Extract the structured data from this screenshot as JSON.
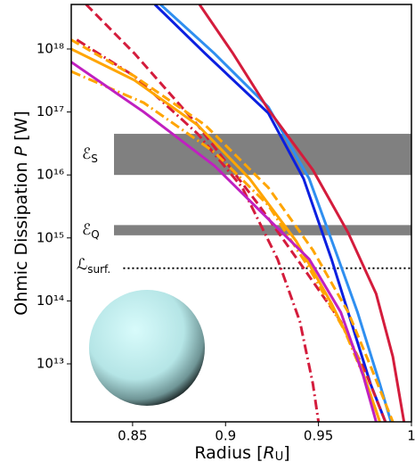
{
  "chart_data": {
    "type": "line",
    "xlabel": [
      "Radius [",
      "R",
      "U",
      "]"
    ],
    "ylabel": [
      "Ohmic Dissipation ",
      "P",
      " [W]"
    ],
    "xlim": [
      0.817,
      1.0
    ],
    "xticks": [
      0.85,
      0.9,
      0.95,
      1
    ],
    "ylim": [
      1200000000000.0,
      5.1e+18
    ],
    "log_y": true,
    "yticks": [
      {
        "value": 10000000000000.0,
        "label": "10¹³"
      },
      {
        "value": 100000000000000.0,
        "label": "10¹⁴"
      },
      {
        "value": 1000000000000000.0,
        "label": "10¹⁵"
      },
      {
        "value": 1e+16,
        "label": "10¹⁶"
      },
      {
        "value": 1e+17,
        "label": "10¹⁷"
      },
      {
        "value": 1e+18,
        "label": "10¹⁸"
      }
    ],
    "bands": [
      {
        "label": "ℰ",
        "sub": "S",
        "xmin": 0.84,
        "ymin": 1e+16,
        "ymax": 4.5e+16,
        "color": "#808080"
      },
      {
        "label": "ℰ",
        "sub": "Q",
        "xmin": 0.84,
        "ymin": 1100000000000000.0,
        "ymax": 1600000000000000.0,
        "color": "#808080"
      }
    ],
    "hlines": [
      {
        "label": "ℒ",
        "sub": "surf.",
        "xmin": 0.845,
        "value": 330000000000000.0,
        "color": "#000000"
      }
    ],
    "series": [
      {
        "color": "#2f8ff0",
        "style": "solid",
        "x": [
          0.865,
          0.894,
          0.923,
          0.945,
          0.959,
          0.971,
          0.983,
          0.989
        ],
        "values": [
          5.1e+18,
          8.5e+17,
          1.2e+17,
          8700000000000000.0,
          640000000000000.0,
          66000000000000.0,
          4800000000000.0,
          1200000000000.0
        ]
      },
      {
        "color": "#0b1fe0",
        "style": "solid",
        "x": [
          0.862,
          0.889,
          0.923,
          0.942,
          0.957,
          0.969,
          0.978,
          0.986
        ],
        "values": [
          5.1e+18,
          8.5e+17,
          9.6e+16,
          8700000000000000.0,
          460000000000000.0,
          34000000000000.0,
          4800000000000.0,
          1200000000000.0
        ]
      },
      {
        "color": "#d41c3c",
        "style": "solid",
        "x": [
          0.886,
          0.904,
          0.923,
          0.947,
          0.966,
          0.981,
          0.99,
          0.996
        ],
        "values": [
          5.1e+18,
          8.5e+17,
          1.1e+17,
          1.2e+16,
          1200000000000000.0,
          130000000000000.0,
          13000000000000.0,
          1200000000000.0
        ]
      },
      {
        "color": "#d41c3c",
        "style": "dashed",
        "x": [
          0.825,
          0.851,
          0.885,
          0.918,
          0.942,
          0.962,
          0.976,
          0.986
        ],
        "values": [
          5.1e+18,
          8.5e+17,
          6.2e+16,
          3300000000000000.0,
          330000000000000.0,
          47000000000000.0,
          6600000000000.0,
          1200000000000.0
        ]
      },
      {
        "color": "#d41c3c",
        "style": "dashdot",
        "x": [
          0.82,
          0.851,
          0.885,
          0.909,
          0.928,
          0.94,
          0.947,
          0.95
        ],
        "values": [
          1.4e+18,
          3.7e+17,
          4.5e+16,
          6300000000000000.0,
          460000000000000.0,
          47000000000000.0,
          4800000000000.0,
          1200000000000.0
        ]
      },
      {
        "color": "#ffa500",
        "style": "solid",
        "x": [
          0.817,
          0.851,
          0.885,
          0.913,
          0.938,
          0.957,
          0.971,
          0.983
        ],
        "values": [
          1e+18,
          3.2e+17,
          6.2e+16,
          8700000000000000.0,
          890000000000000.0,
          91000000000000.0,
          13000000000000.0,
          1200000000000.0
        ]
      },
      {
        "color": "#ffa500",
        "style": "dashed",
        "x": [
          0.817,
          0.851,
          0.889,
          0.923,
          0.947,
          0.966,
          0.978,
          0.99
        ],
        "values": [
          1.4e+18,
          3.7e+17,
          6.2e+16,
          6300000000000000.0,
          640000000000000.0,
          66000000000000.0,
          9200000000000.0,
          1200000000000.0
        ]
      },
      {
        "color": "#ffa500",
        "style": "dashdot",
        "x": [
          0.817,
          0.856,
          0.894,
          0.923,
          0.945,
          0.964,
          0.976,
          0.983
        ],
        "values": [
          4.4e+17,
          1.4e+17,
          2.3e+16,
          3300000000000000.0,
          330000000000000.0,
          34000000000000.0,
          4800000000000.0,
          1200000000000.0
        ]
      },
      {
        "color": "#c020c0",
        "style": "solid",
        "x": [
          0.817,
          0.856,
          0.894,
          0.923,
          0.945,
          0.962,
          0.974,
          0.981
        ],
        "values": [
          6.2e+17,
          1e+17,
          1.4e+16,
          2000000000000000.0,
          460000000000000.0,
          66000000000000.0,
          6600000000000.0,
          1200000000000.0
        ]
      }
    ]
  }
}
